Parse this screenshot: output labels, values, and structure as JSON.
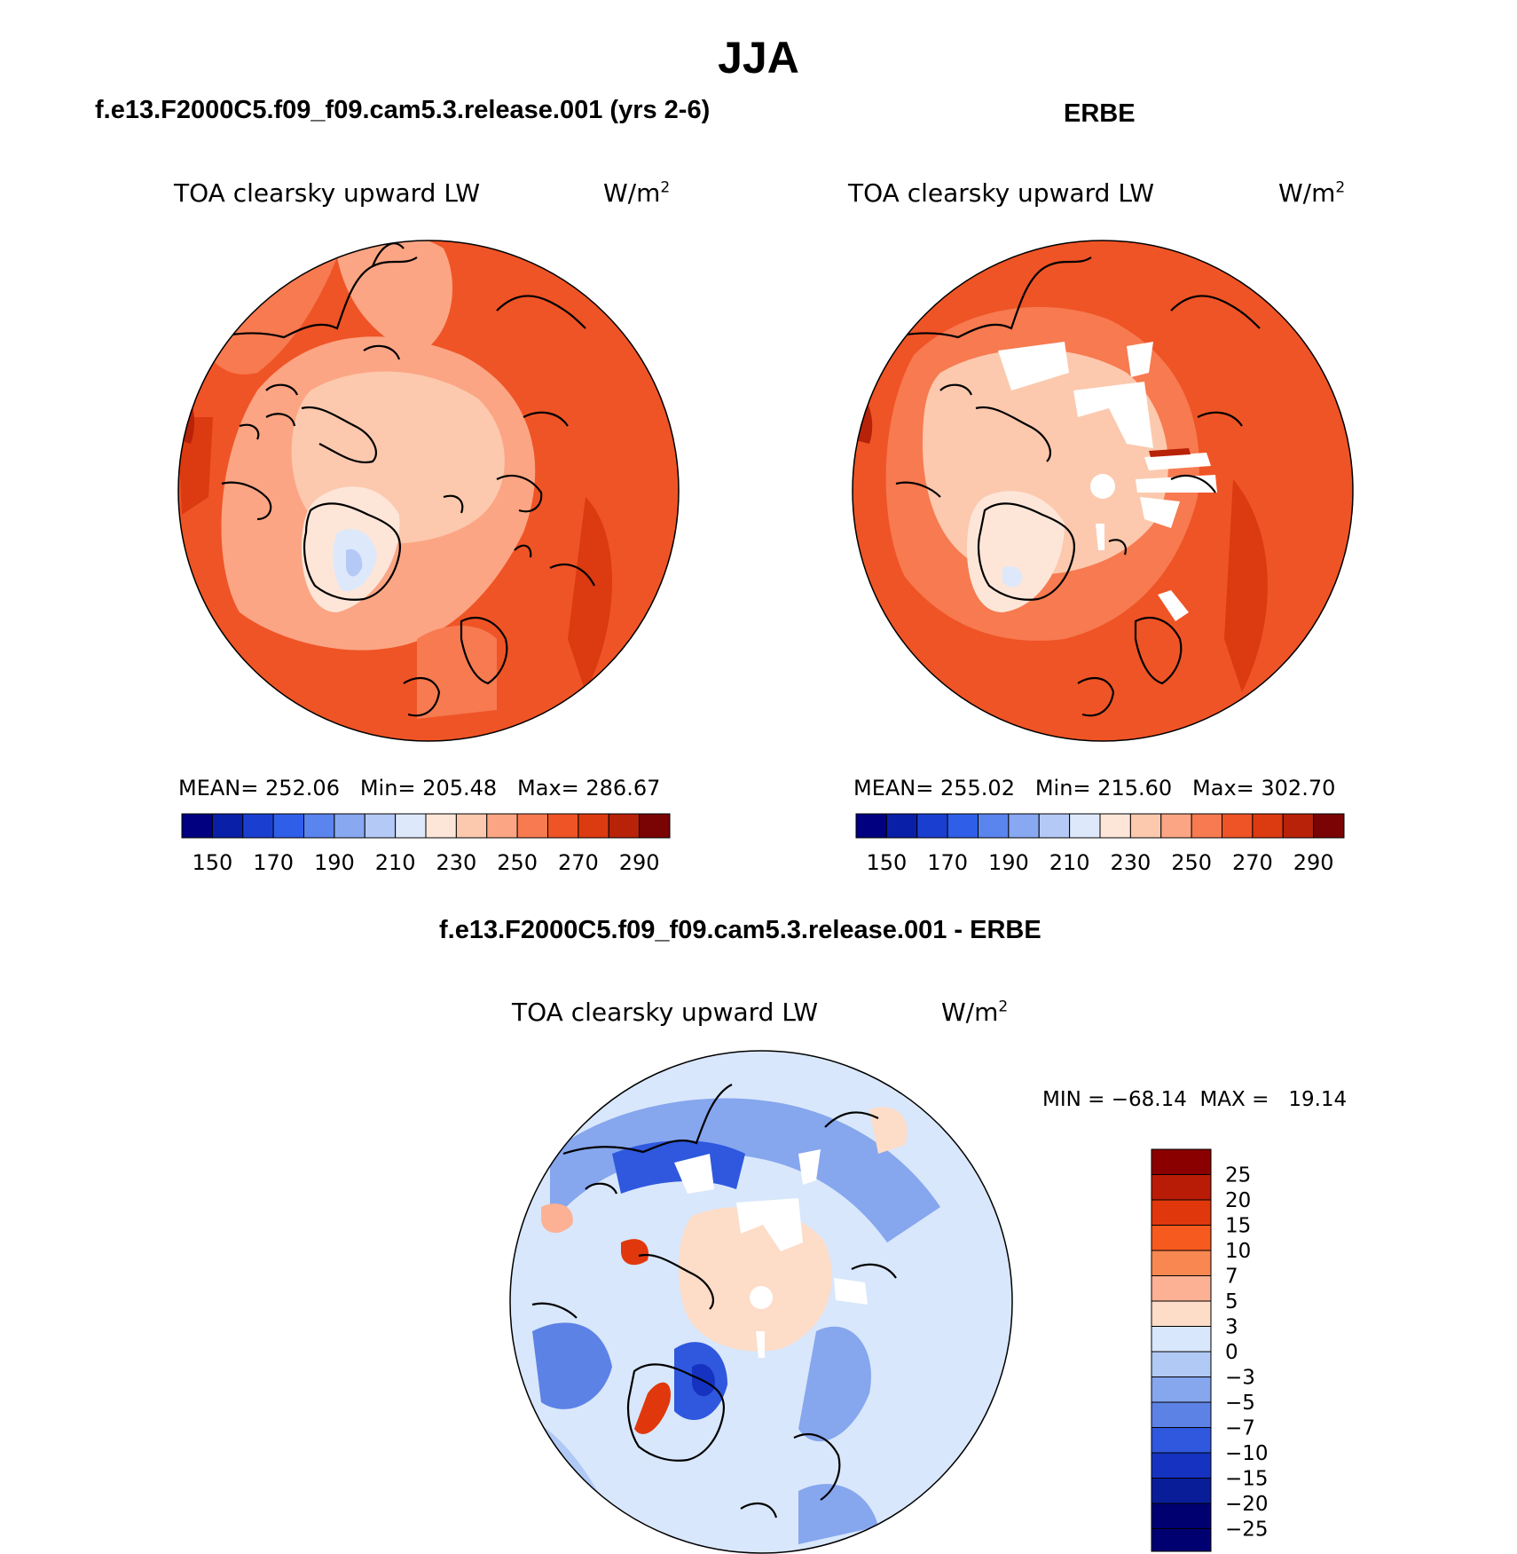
{
  "page_title": "JJA",
  "panels": [
    {
      "case_title": "f.e13.F2000C5.f09_f09.cam5.3.release.001 (yrs 2-6)",
      "variable": "TOA clearsky upward LW",
      "units_base": "W/m",
      "units_exp": "2",
      "stats": "MEAN= 252.06   Min= 205.48   Max= 286.67",
      "colorbar_labels": [
        "150",
        "170",
        "190",
        "210",
        "230",
        "250",
        "270",
        "290"
      ]
    },
    {
      "case_title": "ERBE",
      "variable": "TOA clearsky upward LW",
      "units_base": "W/m",
      "units_exp": "2",
      "stats": "MEAN= 255.02   Min= 215.60   Max= 302.70",
      "colorbar_labels": [
        "150",
        "170",
        "190",
        "210",
        "230",
        "250",
        "270",
        "290"
      ]
    }
  ],
  "diff_panel": {
    "case_title": "f.e13.F2000C5.f09_f09.cam5.3.release.001 - ERBE",
    "variable": "TOA clearsky upward LW",
    "units_base": "W/m",
    "units_exp": "2",
    "minmax": "MIN = −68.14  MAX =   19.14",
    "colorbar_labels": [
      "25",
      "20",
      "15",
      "10",
      "7",
      "5",
      "3",
      "0",
      "−3",
      "−5",
      "−7",
      "−10",
      "−15",
      "−20",
      "−25"
    ]
  },
  "colors": {
    "seq_scale": [
      "#000080",
      "#0a1fa8",
      "#1a3fd0",
      "#2f5fe8",
      "#5a84ee",
      "#88a8f2",
      "#b5c9f6",
      "#dde8fa",
      "#fde6d8",
      "#fcc9ae",
      "#fba584",
      "#f77a50",
      "#ef5426",
      "#dc3a10",
      "#b82208",
      "#7a0303"
    ],
    "diff_scale": [
      "#8a0000",
      "#b81c06",
      "#e0380c",
      "#f65a1f",
      "#f98751",
      "#fcb194",
      "#fddcc8",
      "#d8e7fb",
      "#b0c9f5",
      "#86a6ee",
      "#5d82e6",
      "#2f58de",
      "#1533c0",
      "#0a1d98",
      "#000070"
    ]
  },
  "chart_data": [
    {
      "type": "heatmap",
      "title": "TOA clearsky upward LW",
      "subtitle": "f.e13.F2000C5.f09_f09.cam5.3.release.001 (yrs 2-6)",
      "units": "W/m2",
      "projection": "north polar stereographic",
      "contour_levels": [
        150,
        160,
        170,
        180,
        190,
        200,
        210,
        220,
        230,
        240,
        250,
        260,
        270,
        280,
        290
      ],
      "mean": 252.06,
      "min": 205.48,
      "max": 286.67
    },
    {
      "type": "heatmap",
      "title": "TOA clearsky upward LW",
      "subtitle": "ERBE",
      "units": "W/m2",
      "projection": "north polar stereographic",
      "contour_levels": [
        150,
        160,
        170,
        180,
        190,
        200,
        210,
        220,
        230,
        240,
        250,
        260,
        270,
        280,
        290
      ],
      "mean": 255.02,
      "min": 215.6,
      "max": 302.7
    },
    {
      "type": "heatmap",
      "title": "TOA clearsky upward LW",
      "subtitle": "f.e13.F2000C5.f09_f09.cam5.3.release.001 - ERBE",
      "units": "W/m2",
      "projection": "north polar stereographic",
      "contour_levels": [
        -25,
        -20,
        -15,
        -10,
        -7,
        -5,
        -3,
        0,
        3,
        5,
        7,
        10,
        15,
        20,
        25
      ],
      "min": -68.14,
      "max": 19.14
    }
  ]
}
